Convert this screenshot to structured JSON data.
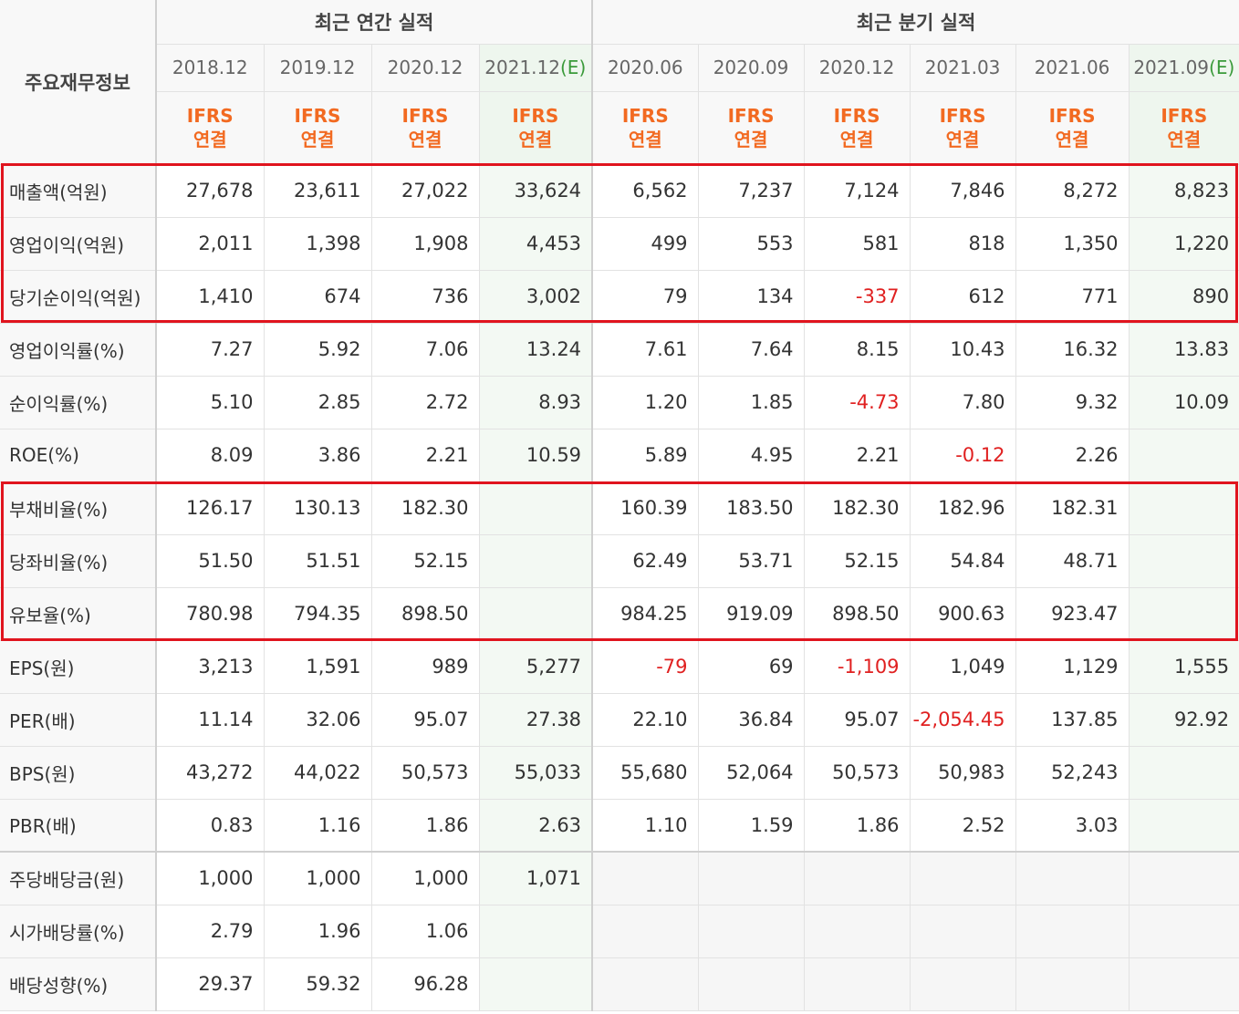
{
  "header": {
    "label": "주요재무정보",
    "annual_group": "최근 연간 실적",
    "quarter_group": "최근 분기 실적",
    "periods": [
      "2018.12",
      "2019.12",
      "2020.12",
      "2021.12",
      "2020.06",
      "2020.09",
      "2020.12",
      "2021.03",
      "2021.06",
      "2021.09"
    ],
    "estimate_mark": "(E)",
    "ifrs_top": "IFRS",
    "ifrs_bottom": "연결"
  },
  "rows": [
    {
      "label": "매출액(억원)",
      "values": [
        "27,678",
        "23,611",
        "27,022",
        "33,624",
        "6,562",
        "7,237",
        "7,124",
        "7,846",
        "8,272",
        "8,823"
      ]
    },
    {
      "label": "영업이익(억원)",
      "values": [
        "2,011",
        "1,398",
        "1,908",
        "4,453",
        "499",
        "553",
        "581",
        "818",
        "1,350",
        "1,220"
      ]
    },
    {
      "label": "당기순이익(억원)",
      "values": [
        "1,410",
        "674",
        "736",
        "3,002",
        "79",
        "134",
        "-337",
        "612",
        "771",
        "890"
      ]
    },
    {
      "label": "영업이익률(%)",
      "values": [
        "7.27",
        "5.92",
        "7.06",
        "13.24",
        "7.61",
        "7.64",
        "8.15",
        "10.43",
        "16.32",
        "13.83"
      ]
    },
    {
      "label": "순이익률(%)",
      "values": [
        "5.10",
        "2.85",
        "2.72",
        "8.93",
        "1.20",
        "1.85",
        "-4.73",
        "7.80",
        "9.32",
        "10.09"
      ]
    },
    {
      "label": "ROE(%)",
      "values": [
        "8.09",
        "3.86",
        "2.21",
        "10.59",
        "5.89",
        "4.95",
        "2.21",
        "-0.12",
        "2.26",
        ""
      ]
    },
    {
      "label": "부채비율(%)",
      "values": [
        "126.17",
        "130.13",
        "182.30",
        "",
        "160.39",
        "183.50",
        "182.30",
        "182.96",
        "182.31",
        ""
      ]
    },
    {
      "label": "당좌비율(%)",
      "values": [
        "51.50",
        "51.51",
        "52.15",
        "",
        "62.49",
        "53.71",
        "52.15",
        "54.84",
        "48.71",
        ""
      ]
    },
    {
      "label": "유보율(%)",
      "values": [
        "780.98",
        "794.35",
        "898.50",
        "",
        "984.25",
        "919.09",
        "898.50",
        "900.63",
        "923.47",
        ""
      ]
    },
    {
      "label": "EPS(원)",
      "values": [
        "3,213",
        "1,591",
        "989",
        "5,277",
        "-79",
        "69",
        "-1,109",
        "1,049",
        "1,129",
        "1,555"
      ]
    },
    {
      "label": "PER(배)",
      "values": [
        "11.14",
        "32.06",
        "95.07",
        "27.38",
        "22.10",
        "36.84",
        "95.07",
        "-2,054.45",
        "137.85",
        "92.92"
      ]
    },
    {
      "label": "BPS(원)",
      "values": [
        "43,272",
        "44,022",
        "50,573",
        "55,033",
        "55,680",
        "52,064",
        "50,573",
        "50,983",
        "52,243",
        ""
      ]
    },
    {
      "label": "PBR(배)",
      "values": [
        "0.83",
        "1.16",
        "1.86",
        "2.63",
        "1.10",
        "1.59",
        "1.86",
        "2.52",
        "3.03",
        ""
      ]
    },
    {
      "label": "주당배당금(원)",
      "values": [
        "1,000",
        "1,000",
        "1,000",
        "1,071",
        "",
        "",
        "",
        "",
        "",
        ""
      ]
    },
    {
      "label": "시가배당률(%)",
      "values": [
        "2.79",
        "1.96",
        "1.06",
        "",
        "",
        "",
        "",
        "",
        "",
        ""
      ]
    },
    {
      "label": "배당성향(%)",
      "values": [
        "29.37",
        "59.32",
        "96.28",
        "",
        "",
        "",
        "",
        "",
        "",
        ""
      ]
    }
  ],
  "colors": {
    "highlight": "#e0141e",
    "ifrs": "#f26a21",
    "estimate": "#3a9a3a",
    "negative": "#e02020"
  }
}
